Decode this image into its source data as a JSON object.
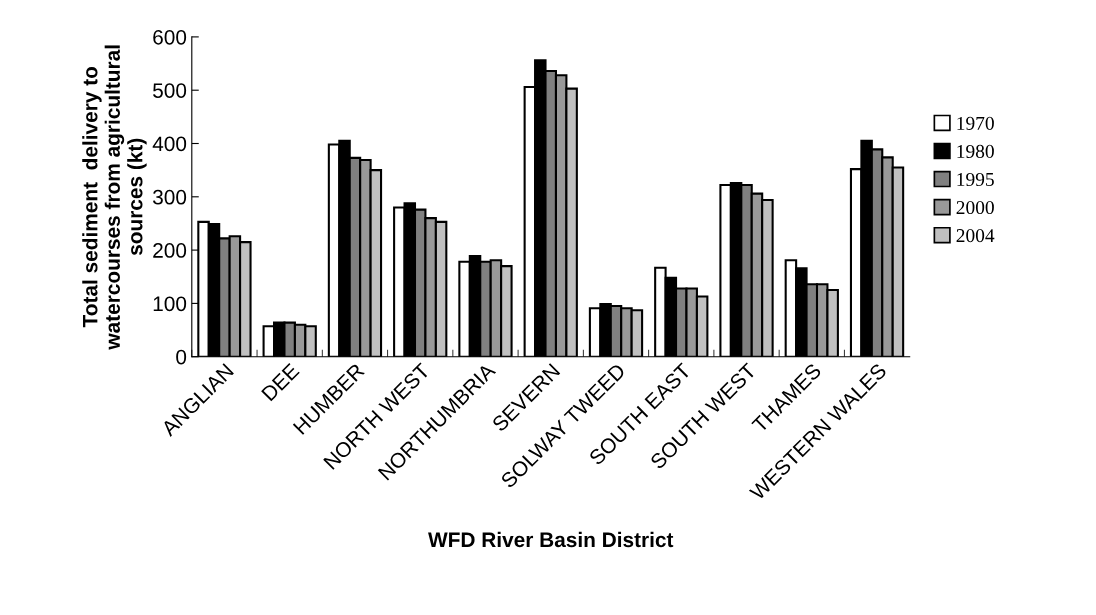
{
  "chart_data": {
    "type": "bar",
    "xlabel": "WFD River Basin District",
    "ylabel": "Total sediment  delivery to\nwatercourses from agricultural\nsources (kt)",
    "categories": [
      "ANGLIAN",
      "DEE",
      "HUMBER",
      "NORTH WEST",
      "NORTHUMBRIA",
      "SEVERN",
      "SOLWAY TWEED",
      "SOUTH EAST",
      "SOUTH WEST",
      "THAMES",
      "WESTERN WALES"
    ],
    "series": [
      {
        "name": "1970",
        "color": "#ffffff",
        "values": [
          253,
          57,
          398,
          280,
          178,
          506,
          91,
          167,
          322,
          181,
          352
        ]
      },
      {
        "name": "1980",
        "color": "#000000",
        "values": [
          249,
          64,
          405,
          288,
          189,
          556,
          99,
          148,
          326,
          166,
          405
        ]
      },
      {
        "name": "1995",
        "color": "#808080",
        "values": [
          222,
          64,
          373,
          276,
          178,
          536,
          95,
          128,
          322,
          136,
          389
        ]
      },
      {
        "name": "2000",
        "color": "#999999",
        "values": [
          226,
          60,
          369,
          260,
          181,
          528,
          91,
          128,
          306,
          136,
          374
        ]
      },
      {
        "name": "2004",
        "color": "#c0c0c0",
        "values": [
          215,
          57,
          350,
          253,
          170,
          503,
          87,
          113,
          294,
          125,
          355
        ]
      }
    ],
    "ylim": [
      0,
      600
    ],
    "yticks": [
      0,
      100,
      200,
      300,
      400,
      500,
      600
    ],
    "grid": false,
    "legend": "right"
  }
}
